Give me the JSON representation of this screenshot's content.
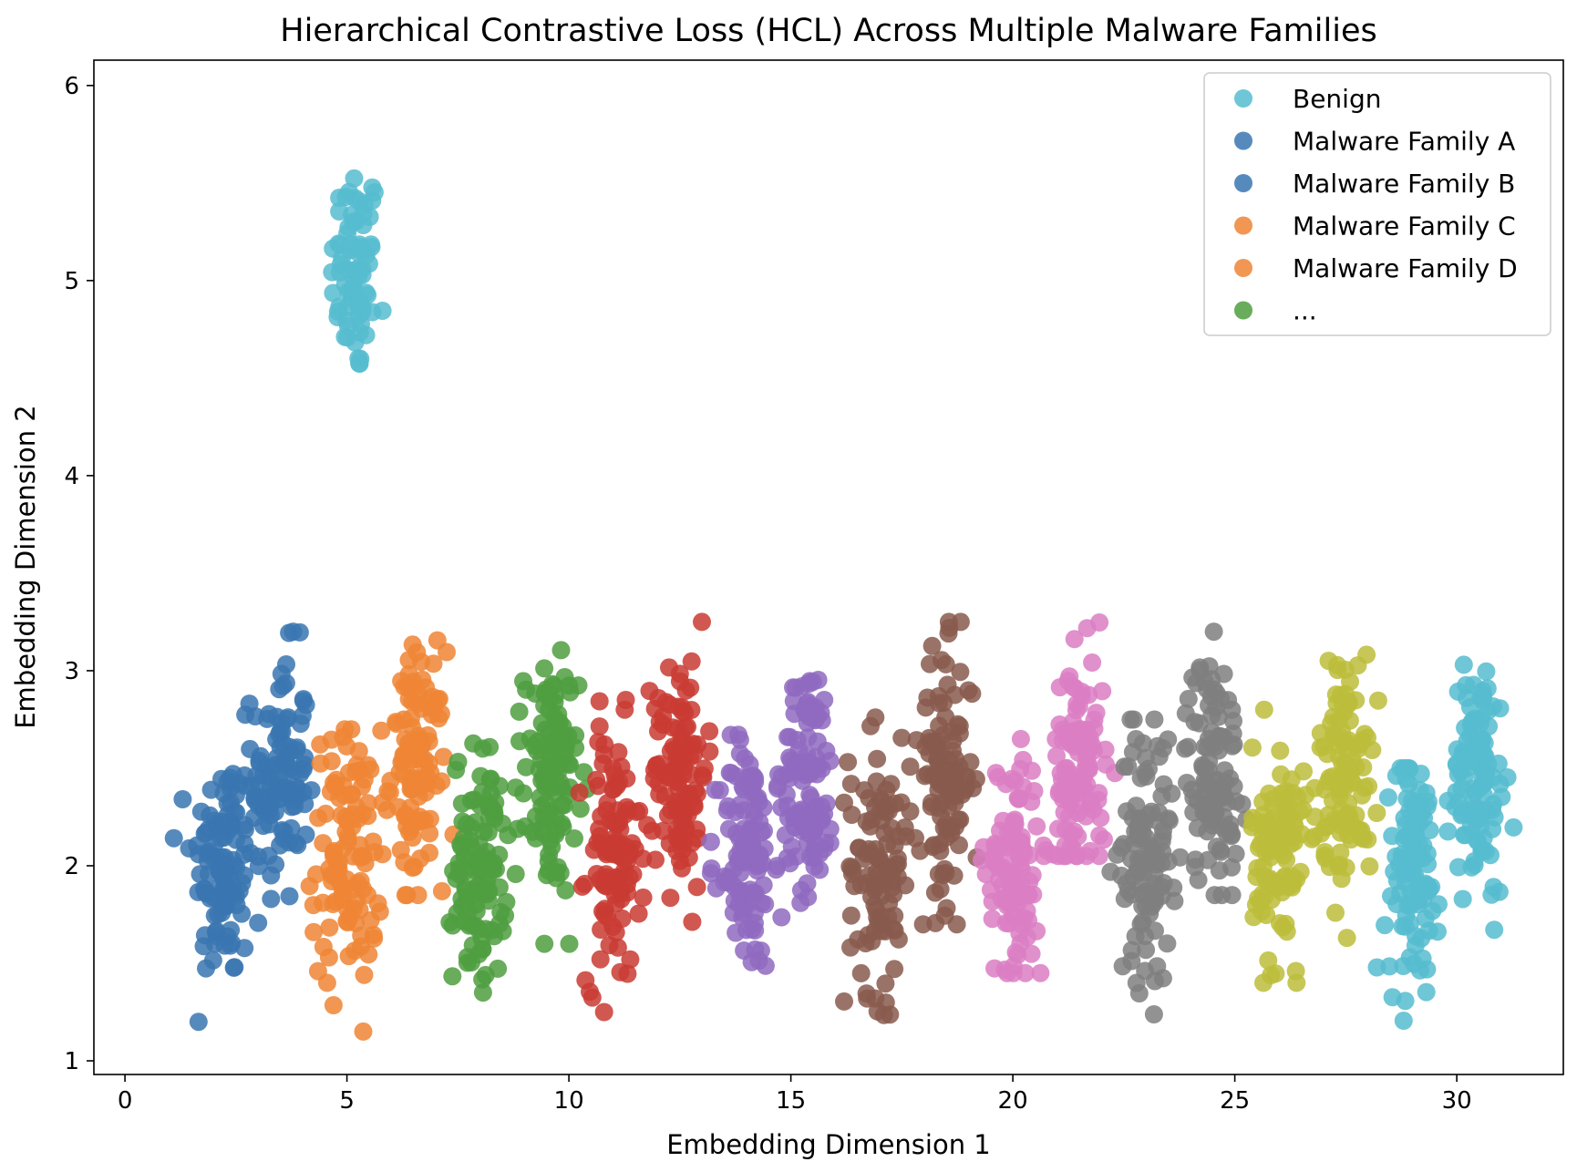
{
  "chart_data": {
    "type": "scatter",
    "title": "Hierarchical Contrastive Loss (HCL) Across Multiple Malware Families",
    "xlabel": "Embedding Dimension 1",
    "ylabel": "Embedding Dimension 2",
    "xlim": [
      -0.7,
      32.4
    ],
    "ylim": [
      0.93,
      6.13
    ],
    "xticks": [
      0,
      5,
      10,
      15,
      20,
      25,
      30
    ],
    "yticks": [
      1,
      2,
      3,
      4,
      5,
      6
    ],
    "grid": false,
    "legend_position": "top-right",
    "legend": [
      {
        "label": "Benign",
        "color": "#56bccf"
      },
      {
        "label": "Malware Family A",
        "color": "#3a75b0"
      },
      {
        "label": "Malware Family B",
        "color": "#3a75b0"
      },
      {
        "label": "Malware Family C",
        "color": "#ee8535"
      },
      {
        "label": "Malware Family D",
        "color": "#ee8535"
      },
      {
        "label": "...",
        "color": "#4f9e3f"
      }
    ],
    "clusters": [
      {
        "color": "#56bccf",
        "center_x": 5.2,
        "center_y": 5.05,
        "sd_x": 0.28,
        "sd_y": 0.28,
        "n": 75,
        "range_x": [
          3.9,
          5.8
        ],
        "range_y": [
          4.4,
          5.9
        ]
      },
      {
        "color": "#3a75b0",
        "center_x": 2.2,
        "center_y": 2.0,
        "sd_x": 0.35,
        "sd_y": 0.3,
        "n": 110,
        "range_x": [
          1.1,
          3.0
        ],
        "range_y": [
          1.2,
          2.6
        ]
      },
      {
        "color": "#3a75b0",
        "center_x": 3.5,
        "center_y": 2.45,
        "sd_x": 0.32,
        "sd_y": 0.32,
        "n": 110,
        "range_x": [
          2.6,
          4.2
        ],
        "range_y": [
          1.5,
          3.2
        ]
      },
      {
        "color": "#ee8535",
        "center_x": 5.0,
        "center_y": 2.05,
        "sd_x": 0.4,
        "sd_y": 0.33,
        "n": 110,
        "range_x": [
          4.1,
          5.8
        ],
        "range_y": [
          1.15,
          2.7
        ]
      },
      {
        "color": "#ee8535",
        "center_x": 6.6,
        "center_y": 2.5,
        "sd_x": 0.3,
        "sd_y": 0.3,
        "n": 110,
        "range_x": [
          5.7,
          7.4
        ],
        "range_y": [
          1.85,
          3.35
        ]
      },
      {
        "color": "#4f9e3f",
        "center_x": 8.0,
        "center_y": 2.0,
        "sd_x": 0.3,
        "sd_y": 0.3,
        "n": 110,
        "range_x": [
          7.2,
          8.8
        ],
        "range_y": [
          1.35,
          2.65
        ]
      },
      {
        "color": "#4f9e3f",
        "center_x": 9.6,
        "center_y": 2.45,
        "sd_x": 0.3,
        "sd_y": 0.3,
        "n": 110,
        "range_x": [
          8.8,
          10.4
        ],
        "range_y": [
          1.6,
          3.3
        ]
      },
      {
        "color": "#c93b33",
        "center_x": 11.0,
        "center_y": 2.05,
        "sd_x": 0.3,
        "sd_y": 0.33,
        "n": 110,
        "range_x": [
          10.2,
          11.8
        ],
        "range_y": [
          1.25,
          2.85
        ]
      },
      {
        "color": "#c93b33",
        "center_x": 12.5,
        "center_y": 2.5,
        "sd_x": 0.3,
        "sd_y": 0.3,
        "n": 110,
        "range_x": [
          11.7,
          13.2
        ],
        "range_y": [
          1.7,
          3.25
        ]
      },
      {
        "color": "#8f6abf",
        "center_x": 14.0,
        "center_y": 2.05,
        "sd_x": 0.3,
        "sd_y": 0.3,
        "n": 110,
        "range_x": [
          13.2,
          14.8
        ],
        "range_y": [
          1.4,
          3.35
        ]
      },
      {
        "color": "#8f6abf",
        "center_x": 15.4,
        "center_y": 2.45,
        "sd_x": 0.3,
        "sd_y": 0.3,
        "n": 110,
        "range_x": [
          14.7,
          16.2
        ],
        "range_y": [
          1.65,
          3.25
        ]
      },
      {
        "color": "#885a4e",
        "center_x": 17.0,
        "center_y": 2.0,
        "sd_x": 0.35,
        "sd_y": 0.33,
        "n": 110,
        "range_x": [
          16.2,
          17.8
        ],
        "range_y": [
          1.15,
          2.8
        ]
      },
      {
        "color": "#885a4e",
        "center_x": 18.5,
        "center_y": 2.45,
        "sd_x": 0.3,
        "sd_y": 0.32,
        "n": 110,
        "range_x": [
          17.6,
          19.3
        ],
        "range_y": [
          1.7,
          3.25
        ]
      },
      {
        "color": "#da7ec3",
        "center_x": 20.0,
        "center_y": 2.0,
        "sd_x": 0.3,
        "sd_y": 0.3,
        "n": 110,
        "range_x": [
          19.3,
          20.8
        ],
        "range_y": [
          1.45,
          2.65
        ]
      },
      {
        "color": "#da7ec3",
        "center_x": 21.5,
        "center_y": 2.5,
        "sd_x": 0.3,
        "sd_y": 0.3,
        "n": 110,
        "range_x": [
          20.7,
          22.3
        ],
        "range_y": [
          2.05,
          3.4
        ]
      },
      {
        "color": "#7f7f7f",
        "center_x": 23.0,
        "center_y": 2.05,
        "sd_x": 0.3,
        "sd_y": 0.33,
        "n": 110,
        "range_x": [
          22.2,
          23.8
        ],
        "range_y": [
          1.15,
          2.75
        ]
      },
      {
        "color": "#7f7f7f",
        "center_x": 24.5,
        "center_y": 2.5,
        "sd_x": 0.3,
        "sd_y": 0.3,
        "n": 110,
        "range_x": [
          23.7,
          25.3
        ],
        "range_y": [
          1.85,
          3.2
        ]
      },
      {
        "color": "#bcbd3b",
        "center_x": 26.0,
        "center_y": 2.05,
        "sd_x": 0.3,
        "sd_y": 0.3,
        "n": 110,
        "range_x": [
          25.2,
          26.8
        ],
        "range_y": [
          1.4,
          2.8
        ]
      },
      {
        "color": "#bcbd3b",
        "center_x": 27.5,
        "center_y": 2.5,
        "sd_x": 0.3,
        "sd_y": 0.3,
        "n": 110,
        "range_x": [
          26.7,
          28.3
        ],
        "range_y": [
          1.5,
          3.4
        ]
      },
      {
        "color": "#56bccf",
        "center_x": 29.0,
        "center_y": 2.0,
        "sd_x": 0.3,
        "sd_y": 0.3,
        "n": 110,
        "range_x": [
          28.2,
          29.8
        ],
        "range_y": [
          1.2,
          2.5
        ]
      },
      {
        "color": "#56bccf",
        "center_x": 30.5,
        "center_y": 2.45,
        "sd_x": 0.3,
        "sd_y": 0.3,
        "n": 110,
        "range_x": [
          29.7,
          31.4
        ],
        "range_y": [
          1.6,
          3.15
        ]
      }
    ]
  }
}
